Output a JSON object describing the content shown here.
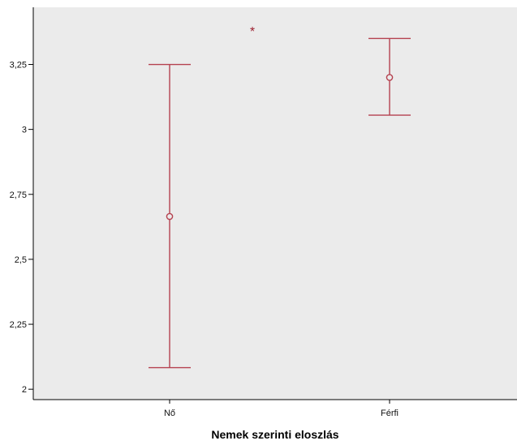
{
  "chart_data": {
    "type": "errorbar",
    "categories": [
      "Nő",
      "Férfi"
    ],
    "series": [
      {
        "mean": [
          2.665,
          3.2
        ],
        "lower": [
          2.083,
          3.055
        ],
        "upper": [
          3.25,
          3.35
        ]
      }
    ],
    "title": "",
    "xlabel": "Nemek szerinti eloszlás",
    "ylabel": "",
    "ylim": [
      1.96,
      3.47
    ],
    "yticks": [
      2,
      2.25,
      2.5,
      2.75,
      3,
      3.25
    ],
    "ytick_labels": [
      "2",
      "2,25",
      "2,5",
      "2,75",
      "3",
      "3,25"
    ],
    "annotation": "*",
    "grid": false,
    "colors": {
      "series": "#b5414f",
      "annotation": "#9c1f2f",
      "plot_background": "#ebebeb",
      "axis": "#000000"
    }
  }
}
